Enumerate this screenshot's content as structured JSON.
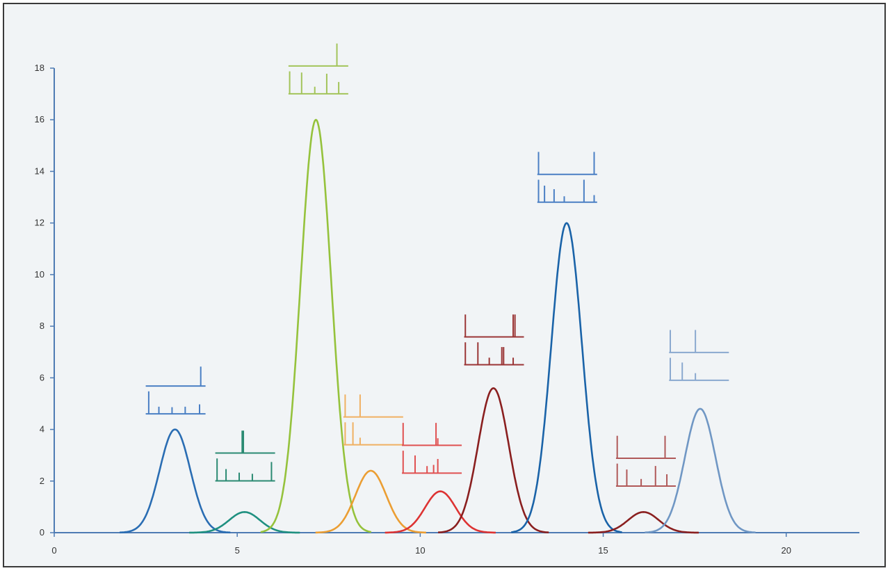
{
  "chart_data": {
    "type": "line",
    "title": "",
    "xlabel": "",
    "ylabel": "",
    "xlim": [
      0,
      22
    ],
    "ylim": [
      0,
      18
    ],
    "x_ticks": [
      0,
      5,
      10,
      15,
      20
    ],
    "y_ticks": [
      0,
      2,
      4,
      6,
      8,
      10,
      12,
      14,
      16,
      18
    ],
    "grid": false,
    "legend": "none",
    "axis_color": "#4e7bb3",
    "series": [
      {
        "center": 3.3,
        "height": 4.0,
        "width": 0.42,
        "color": "#2a6db3"
      },
      {
        "center": 5.2,
        "height": 0.8,
        "width": 0.42,
        "color": "#1f9080"
      },
      {
        "center": 7.15,
        "height": 16.0,
        "width": 0.42,
        "color": "#95c23c"
      },
      {
        "center": 8.65,
        "height": 2.4,
        "width": 0.42,
        "color": "#eb9e33"
      },
      {
        "center": 10.55,
        "height": 1.6,
        "width": 0.42,
        "color": "#dd3333"
      },
      {
        "center": 12.0,
        "height": 5.6,
        "width": 0.42,
        "color": "#8a1f1f"
      },
      {
        "center": 14.0,
        "height": 12.0,
        "width": 0.42,
        "color": "#1a63a8"
      },
      {
        "center": 16.1,
        "height": 0.8,
        "width": 0.42,
        "color": "#8a1f1f"
      },
      {
        "center": 17.65,
        "height": 4.8,
        "width": 0.42,
        "color": "#7097c4"
      }
    ],
    "insets": [
      {
        "x": 2.5,
        "y_top": 6.6,
        "color": "#4a7fc4",
        "top_peaks": [
          {
            "x": 0.92,
            "h": 0.82
          }
        ],
        "bottom_peaks": [
          {
            "x": 0.05,
            "h": 0.95
          },
          {
            "x": 0.22,
            "h": 0.3
          },
          {
            "x": 0.44,
            "h": 0.28
          },
          {
            "x": 0.66,
            "h": 0.3
          },
          {
            "x": 0.9,
            "h": 0.4
          }
        ]
      },
      {
        "x": 4.4,
        "y_top": 4.0,
        "color": "#2a8a72",
        "top_peaks": [
          {
            "x": 0.45,
            "h": 0.95
          },
          {
            "x": 0.47,
            "h": 0.95
          }
        ],
        "bottom_peaks": [
          {
            "x": 0.03,
            "h": 0.95
          },
          {
            "x": 0.18,
            "h": 0.5
          },
          {
            "x": 0.4,
            "h": 0.35
          },
          {
            "x": 0.62,
            "h": 0.3
          },
          {
            "x": 0.94,
            "h": 0.8
          }
        ]
      },
      {
        "x": 6.4,
        "y_top": 19.0,
        "color": "#a3c45a",
        "top_peaks": [
          {
            "x": 0.81,
            "h": 0.95
          }
        ],
        "bottom_peaks": [
          {
            "x": 0.02,
            "h": 0.95
          },
          {
            "x": 0.22,
            "h": 0.9
          },
          {
            "x": 0.44,
            "h": 0.3
          },
          {
            "x": 0.64,
            "h": 0.85
          },
          {
            "x": 0.84,
            "h": 0.5
          }
        ]
      },
      {
        "x": 7.9,
        "y_top": 5.4,
        "color": "#f0b062",
        "top_peaks": [
          {
            "x": 0.03,
            "h": 0.95
          },
          {
            "x": 0.28,
            "h": 0.95
          }
        ],
        "bottom_peaks": [
          {
            "x": 0.03,
            "h": 0.95
          },
          {
            "x": 0.16,
            "h": 0.95
          },
          {
            "x": 0.28,
            "h": 0.3
          }
        ]
      },
      {
        "x": 9.5,
        "y_top": 4.3,
        "color": "#e05050",
        "top_peaks": [
          {
            "x": 0.02,
            "h": 0.95
          },
          {
            "x": 0.57,
            "h": 0.95
          },
          {
            "x": 0.6,
            "h": 0.3
          }
        ],
        "bottom_peaks": [
          {
            "x": 0.02,
            "h": 0.95
          },
          {
            "x": 0.22,
            "h": 0.75
          },
          {
            "x": 0.42,
            "h": 0.3
          },
          {
            "x": 0.53,
            "h": 0.35
          },
          {
            "x": 0.6,
            "h": 0.6
          }
        ]
      },
      {
        "x": 11.2,
        "y_top": 8.5,
        "color": "#9a3535",
        "top_peaks": [
          {
            "x": 0.02,
            "h": 0.95
          },
          {
            "x": 0.82,
            "h": 0.95
          },
          {
            "x": 0.85,
            "h": 0.95
          }
        ],
        "bottom_peaks": [
          {
            "x": 0.02,
            "h": 0.95
          },
          {
            "x": 0.23,
            "h": 0.95
          },
          {
            "x": 0.42,
            "h": 0.3
          },
          {
            "x": 0.63,
            "h": 0.75
          },
          {
            "x": 0.66,
            "h": 0.75
          },
          {
            "x": 0.82,
            "h": 0.3
          }
        ]
      },
      {
        "x": 13.2,
        "y_top": 14.8,
        "color": "#4a7fc4",
        "top_peaks": [
          {
            "x": 0.02,
            "h": 0.95
          },
          {
            "x": 0.95,
            "h": 0.95
          }
        ],
        "bottom_peaks": [
          {
            "x": 0.02,
            "h": 0.95
          },
          {
            "x": 0.12,
            "h": 0.7
          },
          {
            "x": 0.28,
            "h": 0.55
          },
          {
            "x": 0.45,
            "h": 0.25
          },
          {
            "x": 0.78,
            "h": 0.95
          },
          {
            "x": 0.95,
            "h": 0.3
          }
        ]
      },
      {
        "x": 15.35,
        "y_top": 3.8,
        "color": "#b05858",
        "top_peaks": [
          {
            "x": 0.02,
            "h": 0.95
          },
          {
            "x": 0.82,
            "h": 0.95
          }
        ],
        "bottom_peaks": [
          {
            "x": 0.02,
            "h": 0.95
          },
          {
            "x": 0.18,
            "h": 0.7
          },
          {
            "x": 0.42,
            "h": 0.3
          },
          {
            "x": 0.66,
            "h": 0.85
          },
          {
            "x": 0.85,
            "h": 0.5
          }
        ]
      },
      {
        "x": 16.8,
        "y_top": 7.9,
        "color": "#8aa9cf",
        "top_peaks": [
          {
            "x": 0.02,
            "h": 0.95
          },
          {
            "x": 0.44,
            "h": 0.95
          }
        ],
        "bottom_peaks": [
          {
            "x": 0.02,
            "h": 0.95
          },
          {
            "x": 0.22,
            "h": 0.75
          },
          {
            "x": 0.44,
            "h": 0.3
          }
        ]
      }
    ]
  }
}
